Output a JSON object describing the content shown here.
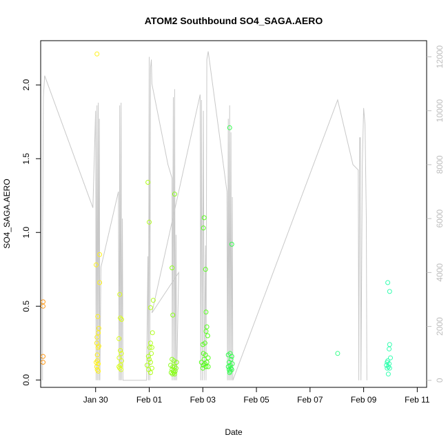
{
  "chart_data": {
    "type": "scatter",
    "title": "ATOM2 Southbound SO4_SAGA.AERO",
    "xlabel": "Date",
    "ylabel": "SO4_SAGA.AERO",
    "x_ticks": [
      "Jan 30",
      "Feb 01",
      "Feb 03",
      "Feb 05",
      "Feb 07",
      "Feb 09",
      "Feb 11"
    ],
    "x_tick_values": [
      2,
      4,
      6,
      8,
      10,
      12,
      14
    ],
    "xlim": [
      -0.05,
      14.35
    ],
    "ylim": [
      -0.05,
      2.3
    ],
    "y_ticks": [
      0.0,
      0.5,
      1.0,
      1.5,
      2.0
    ],
    "y_tick_labels": [
      "0.0",
      "0.5",
      "1.0",
      "1.5",
      "2.0"
    ],
    "y2lim": [
      -260,
      12600
    ],
    "y2_ticks": [
      0,
      2000,
      4000,
      6000,
      8000,
      10000,
      12000
    ],
    "y2_tick_labels": [
      "0",
      "2000",
      "4000",
      "6000",
      "8000",
      "10000",
      "12000"
    ],
    "grid": false,
    "series": [
      {
        "color": "#FF9A1A",
        "points": [
          [
            0.04,
            0.53
          ],
          [
            0.04,
            0.5
          ],
          [
            0.04,
            0.16
          ],
          [
            0.04,
            0.12
          ]
        ]
      },
      {
        "color": "#FFF21A",
        "points": [
          [
            2.05,
            2.21
          ],
          [
            2.02,
            0.78
          ],
          [
            2.15,
            0.85
          ],
          [
            2.15,
            0.66
          ],
          [
            2.08,
            0.43
          ],
          [
            2.12,
            0.35
          ],
          [
            2.1,
            0.32
          ],
          [
            2.05,
            0.29
          ],
          [
            2.04,
            0.25
          ],
          [
            2.12,
            0.23
          ],
          [
            2.09,
            0.22
          ],
          [
            2.06,
            0.17
          ],
          [
            2.06,
            0.13
          ],
          [
            2.02,
            0.12
          ],
          [
            2.1,
            0.11
          ],
          [
            2.04,
            0.09
          ],
          [
            2.06,
            0.07
          ],
          [
            2.1,
            0.06
          ]
        ]
      },
      {
        "color": "#DBFF1A",
        "points": [
          [
            2.9,
            0.58
          ],
          [
            2.92,
            0.42
          ],
          [
            2.97,
            0.41
          ],
          [
            2.87,
            0.28
          ],
          [
            2.92,
            0.2
          ],
          [
            2.96,
            0.18
          ],
          [
            2.88,
            0.15
          ],
          [
            2.97,
            0.13
          ],
          [
            2.93,
            0.1
          ],
          [
            2.87,
            0.09
          ],
          [
            2.9,
            0.08
          ],
          [
            2.95,
            0.07
          ]
        ]
      },
      {
        "color": "#B0FF1A",
        "points": [
          [
            3.95,
            1.34
          ],
          [
            4.0,
            1.07
          ],
          [
            4.15,
            0.54
          ],
          [
            4.05,
            0.49
          ],
          [
            4.12,
            0.32
          ],
          [
            4.05,
            0.25
          ],
          [
            4.1,
            0.22
          ],
          [
            4.02,
            0.22
          ],
          [
            4.08,
            0.18
          ],
          [
            3.97,
            0.16
          ],
          [
            4.0,
            0.14
          ],
          [
            4.05,
            0.12
          ],
          [
            3.92,
            0.1
          ],
          [
            4.1,
            0.08
          ],
          [
            3.98,
            0.07
          ],
          [
            4.05,
            0.05
          ]
        ]
      },
      {
        "color": "#8AFF1A",
        "points": [
          [
            4.95,
            1.26
          ],
          [
            4.85,
            0.76
          ],
          [
            4.88,
            0.44
          ],
          [
            4.85,
            0.14
          ],
          [
            4.92,
            0.13
          ],
          [
            5.02,
            0.12
          ],
          [
            4.8,
            0.1
          ],
          [
            4.88,
            0.09
          ],
          [
            4.95,
            0.09
          ],
          [
            5.0,
            0.08
          ],
          [
            4.85,
            0.07
          ],
          [
            4.9,
            0.06
          ],
          [
            4.97,
            0.06
          ],
          [
            4.82,
            0.05
          ],
          [
            4.92,
            0.05
          ],
          [
            4.87,
            0.04
          ],
          [
            4.95,
            0.04
          ]
        ]
      },
      {
        "color": "#55FF1A",
        "points": [
          [
            6.05,
            1.1
          ],
          [
            6.02,
            1.03
          ],
          [
            6.1,
            0.75
          ],
          [
            6.12,
            0.46
          ],
          [
            6.15,
            0.36
          ],
          [
            6.12,
            0.33
          ],
          [
            6.18,
            0.3
          ],
          [
            6.08,
            0.25
          ],
          [
            6.0,
            0.24
          ],
          [
            6.02,
            0.18
          ],
          [
            6.1,
            0.17
          ],
          [
            6.2,
            0.15
          ],
          [
            6.05,
            0.14
          ],
          [
            6.15,
            0.12
          ],
          [
            5.95,
            0.12
          ],
          [
            6.08,
            0.11
          ],
          [
            6.02,
            0.1
          ],
          [
            6.12,
            0.09
          ],
          [
            6.2,
            0.09
          ],
          [
            6.0,
            0.08
          ]
        ]
      },
      {
        "color": "#33FF4D",
        "points": [
          [
            7.0,
            1.71
          ],
          [
            7.08,
            0.92
          ],
          [
            7.02,
            0.18
          ],
          [
            6.95,
            0.17
          ],
          [
            7.08,
            0.16
          ],
          [
            7.05,
            0.14
          ],
          [
            6.98,
            0.12
          ],
          [
            7.1,
            0.11
          ],
          [
            7.02,
            0.1
          ],
          [
            6.95,
            0.09
          ],
          [
            7.05,
            0.08
          ],
          [
            6.98,
            0.07
          ],
          [
            7.08,
            0.07
          ],
          [
            7.02,
            0.06
          ],
          [
            7.0,
            0.05
          ]
        ]
      },
      {
        "color": "#33FF88",
        "points": [
          [
            11.03,
            0.18
          ]
        ]
      },
      {
        "color": "#33FFB0",
        "points": [
          [
            12.9,
            0.66
          ],
          [
            12.97,
            0.6
          ],
          [
            12.97,
            0.24
          ],
          [
            12.95,
            0.21
          ],
          [
            13.0,
            0.15
          ],
          [
            12.9,
            0.13
          ],
          [
            12.88,
            0.12
          ],
          [
            12.95,
            0.11
          ],
          [
            12.85,
            0.1
          ],
          [
            12.92,
            0.09
          ],
          [
            12.97,
            0.08
          ],
          [
            12.88,
            0.08
          ],
          [
            12.92,
            0.04
          ]
        ]
      }
    ],
    "altitude_trace": {
      "color": "#c8c8c8",
      "axis": "right",
      "points": [
        [
          0.02,
          0
        ],
        [
          0.02,
          5000
        ],
        [
          0.05,
          10500
        ],
        [
          0.1,
          11300
        ],
        [
          1.9,
          6400
        ],
        [
          2.0,
          10000
        ],
        [
          2.02,
          0
        ],
        [
          2.05,
          10200
        ],
        [
          2.07,
          0
        ],
        [
          2.1,
          10300
        ],
        [
          2.12,
          0
        ],
        [
          2.14,
          9700
        ],
        [
          2.16,
          0
        ],
        [
          2.2,
          4200
        ],
        [
          2.85,
          7000
        ],
        [
          2.88,
          0
        ],
        [
          2.9,
          10200
        ],
        [
          2.92,
          0
        ],
        [
          2.95,
          10300
        ],
        [
          2.97,
          0
        ],
        [
          3.0,
          6000
        ],
        [
          3.02,
          0
        ],
        [
          3.8,
          0
        ],
        [
          3.9,
          0
        ],
        [
          3.95,
          4600
        ],
        [
          3.97,
          0
        ],
        [
          4.0,
          12000
        ],
        [
          4.02,
          0
        ],
        [
          4.05,
          11600
        ],
        [
          4.08,
          11900
        ],
        [
          4.1,
          11000
        ],
        [
          4.7,
          8000
        ],
        [
          4.85,
          7500
        ],
        [
          4.86,
          0
        ],
        [
          4.9,
          10500
        ],
        [
          4.92,
          0
        ],
        [
          4.95,
          10800
        ],
        [
          4.97,
          0
        ],
        [
          5.0,
          5400
        ],
        [
          5.02,
          0
        ],
        [
          5.1,
          4000
        ],
        [
          4.1,
          2500
        ],
        [
          5.9,
          10600
        ],
        [
          5.92,
          0
        ],
        [
          5.95,
          10400
        ],
        [
          5.98,
          0
        ],
        [
          6.02,
          10000
        ],
        [
          6.05,
          0
        ],
        [
          6.1,
          5000
        ],
        [
          6.12,
          0
        ],
        [
          6.15,
          11900
        ],
        [
          6.2,
          12200
        ],
        [
          6.9,
          7000
        ],
        [
          6.92,
          0
        ],
        [
          6.95,
          9700
        ],
        [
          6.97,
          0
        ],
        [
          7.0,
          10200
        ],
        [
          7.02,
          0
        ],
        [
          7.05,
          9200
        ],
        [
          7.07,
          0
        ],
        [
          7.1,
          6800
        ],
        [
          7.12,
          0
        ],
        [
          11.03,
          10400
        ],
        [
          11.6,
          8000
        ],
        [
          11.8,
          7800
        ],
        [
          11.82,
          0
        ],
        [
          11.85,
          9000
        ],
        [
          11.88,
          9000
        ],
        [
          11.9,
          0
        ],
        [
          11.95,
          8000
        ],
        [
          12.0,
          10100
        ],
        [
          12.05,
          9500
        ],
        [
          12.1,
          6000
        ],
        [
          12.12,
          0
        ]
      ]
    }
  }
}
